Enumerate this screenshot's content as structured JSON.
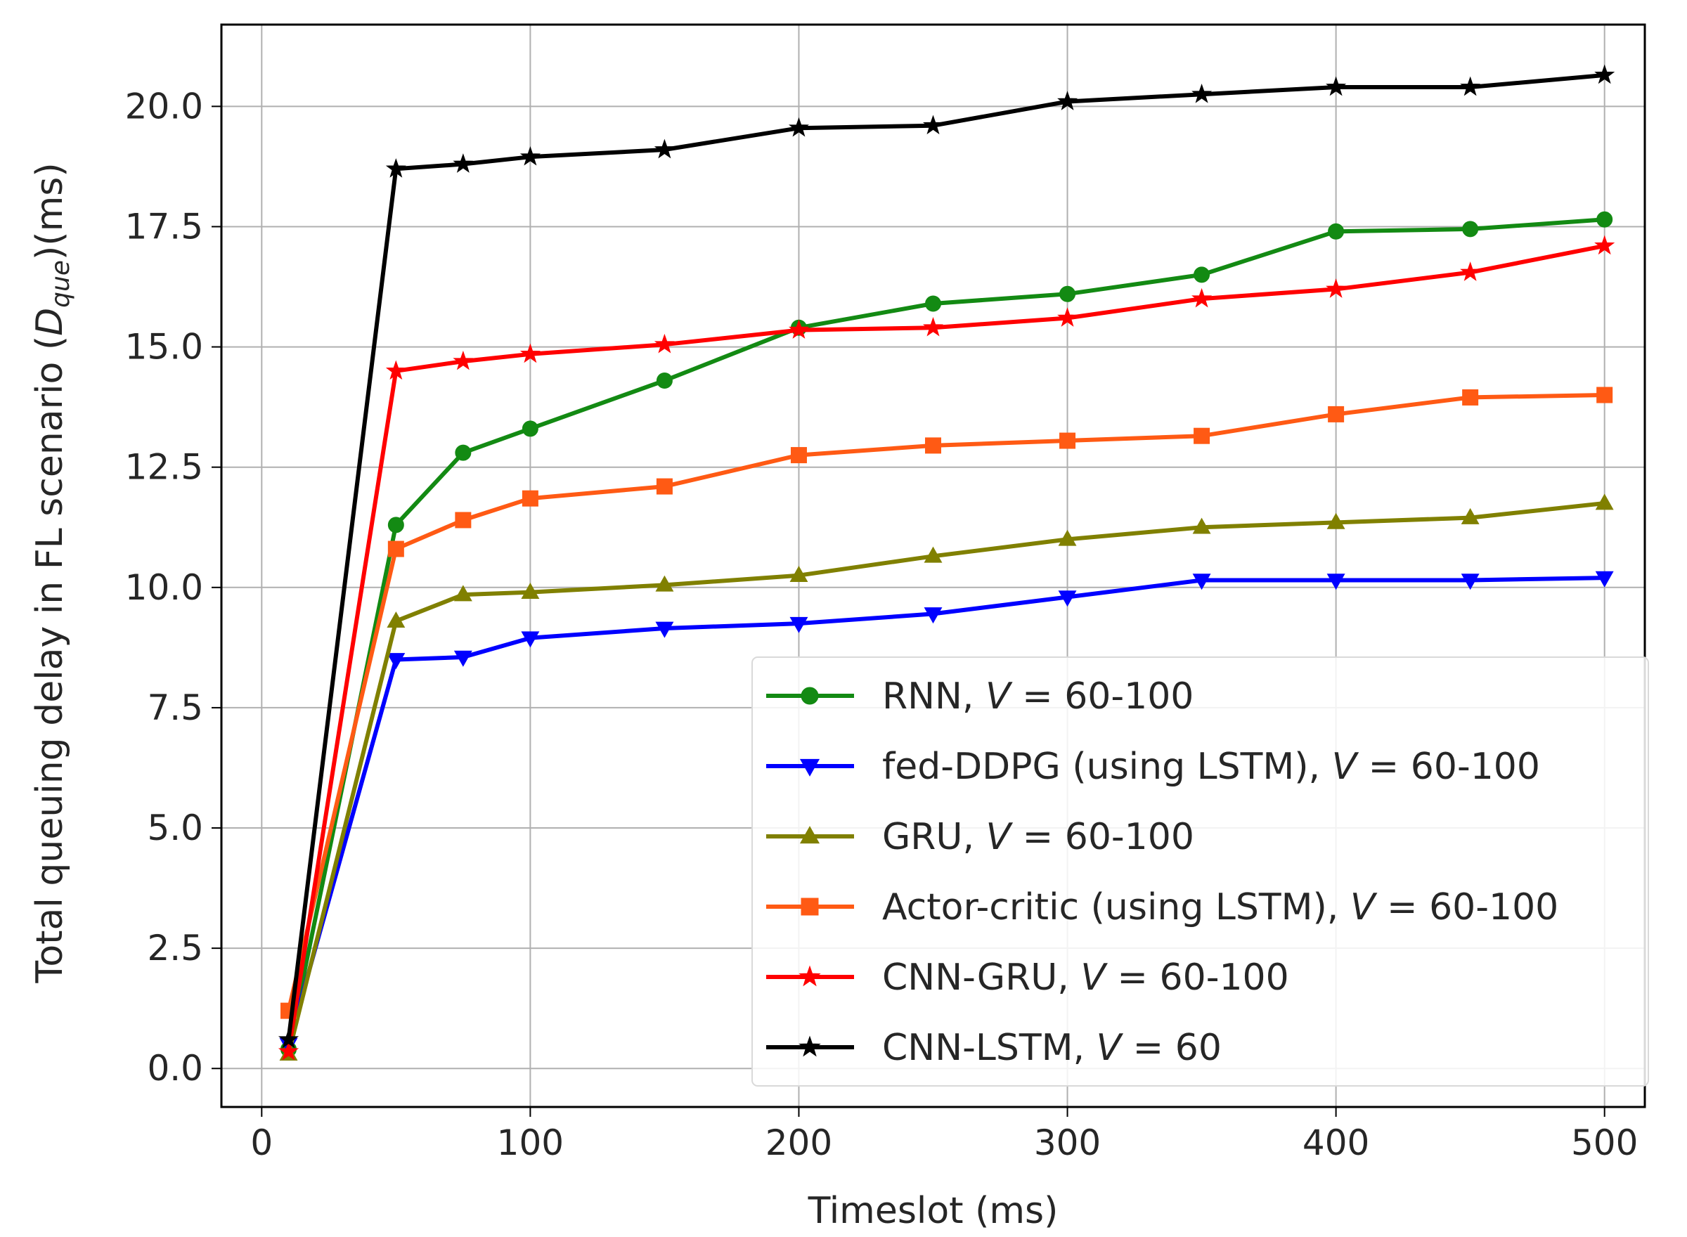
{
  "chart_data": {
    "type": "line",
    "xlabel": "Timeslot (ms)",
    "ylabel_parts": {
      "prefix": "Total queuing delay in FL scenario (",
      "symbol": "D",
      "subscript": "que",
      "suffix": ")(ms)"
    },
    "xlim": [
      -15,
      515
    ],
    "ylim": [
      -0.8,
      21.7
    ],
    "xticks": [
      0,
      100,
      200,
      300,
      400,
      500
    ],
    "yticks": [
      0.0,
      2.5,
      5.0,
      7.5,
      10.0,
      12.5,
      15.0,
      17.5,
      20.0
    ],
    "ytick_labels": [
      "0.0",
      "2.5",
      "5.0",
      "7.5",
      "10.0",
      "12.5",
      "15.0",
      "17.5",
      "20.0"
    ],
    "grid": true,
    "legend_position": "lower-right",
    "x": [
      10,
      50,
      75,
      100,
      150,
      200,
      250,
      300,
      350,
      400,
      450,
      500
    ],
    "series": [
      {
        "name": "RNN",
        "legend_prefix": "RNN, ",
        "legend_var": "V",
        "legend_suffix": " = 60-100",
        "color": "#138a13",
        "marker": "circle",
        "values": [
          0.4,
          11.3,
          12.8,
          13.3,
          14.3,
          15.4,
          15.9,
          16.1,
          16.5,
          17.4,
          17.45,
          17.65
        ]
      },
      {
        "name": "fed-DDPG (using LSTM)",
        "legend_prefix": "fed-DDPG (using LSTM), ",
        "legend_var": "V",
        "legend_suffix": " = 60-100",
        "color": "#0000ff",
        "marker": "triangle-down",
        "values": [
          0.5,
          8.5,
          8.55,
          8.95,
          9.15,
          9.25,
          9.45,
          9.8,
          10.15,
          10.15,
          10.15,
          10.2
        ]
      },
      {
        "name": "GRU",
        "legend_prefix": "GRU, ",
        "legend_var": "V",
        "legend_suffix": " = 60-100",
        "color": "#808000",
        "marker": "triangle-up",
        "values": [
          0.3,
          9.3,
          9.85,
          9.9,
          10.05,
          10.25,
          10.65,
          11.0,
          11.25,
          11.35,
          11.45,
          11.75
        ]
      },
      {
        "name": "Actor-critic (using LSTM)",
        "legend_prefix": "Actor-critic (using LSTM), ",
        "legend_var": "V",
        "legend_suffix": " = 60-100",
        "color": "#ff5a14",
        "marker": "square",
        "values": [
          1.2,
          10.8,
          11.4,
          11.85,
          12.1,
          12.75,
          12.95,
          13.05,
          13.15,
          13.6,
          13.95,
          14.0
        ]
      },
      {
        "name": "CNN-GRU",
        "legend_prefix": "CNN-GRU, ",
        "legend_var": "V",
        "legend_suffix": " = 60-100",
        "color": "#ff0000",
        "marker": "star",
        "values": [
          0.35,
          14.5,
          14.7,
          14.85,
          15.05,
          15.35,
          15.4,
          15.6,
          16.0,
          16.2,
          16.55,
          17.1
        ]
      },
      {
        "name": "CNN-LSTM",
        "legend_prefix": "CNN-LSTM, ",
        "legend_var": "V",
        "legend_suffix": " = 60",
        "color": "#000000",
        "marker": "star",
        "values": [
          0.6,
          18.7,
          18.8,
          18.95,
          19.1,
          19.55,
          19.6,
          20.1,
          20.25,
          20.4,
          20.4,
          20.65
        ]
      }
    ]
  }
}
